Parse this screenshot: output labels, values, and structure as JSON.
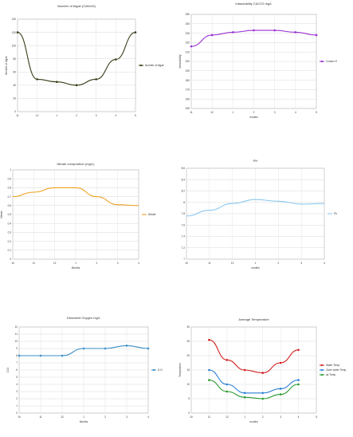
{
  "charts": [
    {
      "type": "line",
      "title": "Number of Algae (Cell/ml2)",
      "xlabel": "",
      "ylabel": "Number of Algae",
      "x_ticks": [
        "11",
        "12",
        "1",
        "2",
        "3",
        "4",
        "5"
      ],
      "x": [
        "11",
        "12",
        "1",
        "2",
        "3",
        "4",
        "5"
      ],
      "ylim": [
        0,
        140
      ],
      "y_ticks": [
        0,
        20,
        40,
        60,
        80,
        100,
        120,
        140
      ],
      "series": [
        {
          "name": "Number of Algae",
          "color": "#3b3b18",
          "values": [
            120,
            49,
            45,
            40,
            49,
            79,
            120
          ]
        }
      ],
      "legend": "right",
      "grid": true,
      "markers": true
    },
    {
      "type": "line",
      "title": "Intractability CACO3 mg/L",
      "xlabel": "months",
      "ylabel": "Intractability",
      "x_ticks": [
        "11",
        "12",
        "1",
        "2",
        "3",
        "4",
        "5"
      ],
      "x": [
        "11",
        "12",
        "1",
        "2",
        "3",
        "4",
        "5"
      ],
      "ylim": [
        150,
        250
      ],
      "y_ticks": [
        150,
        160,
        170,
        180,
        190,
        200,
        210,
        220,
        230,
        240,
        250
      ],
      "series": [
        {
          "name": "Column E",
          "color": "#9b2fd4",
          "values": [
            216,
            228,
            231,
            233,
            233,
            231,
            228
          ]
        }
      ],
      "legend": "right",
      "grid": true,
      "markers": true
    },
    {
      "type": "line",
      "title": "Nitrate composition (mg/L)",
      "xlabel": "Months",
      "ylabel": "Nitrate",
      "x_ticks": [
        "10",
        "11",
        "12",
        "1",
        "2",
        "3",
        "4"
      ],
      "x": [
        "10",
        "11",
        "12",
        "1",
        "2",
        "3",
        "4"
      ],
      "ylim": [
        0,
        1
      ],
      "y_ticks": [
        0,
        0.1,
        0.2,
        0.3,
        0.4,
        0.5,
        0.6,
        0.7,
        0.8,
        0.9,
        1
      ],
      "series": [
        {
          "name": "Nitrate",
          "color": "#f0a020",
          "values": [
            0.7,
            0.75,
            0.8,
            0.8,
            0.7,
            0.61,
            0.6
          ]
        }
      ],
      "legend": "right",
      "grid": true,
      "markers": false
    },
    {
      "type": "line",
      "title": "PH",
      "xlabel": "months",
      "ylabel": "PH",
      "x_ticks": [
        "10",
        "11",
        "12",
        "1",
        "2",
        "3",
        "4"
      ],
      "x": [
        "10",
        "11",
        "12",
        "1",
        "2",
        "3",
        "4"
      ],
      "ylim": [
        7,
        8.6
      ],
      "y_ticks": [
        7,
        7.2,
        7.4,
        7.6,
        7.8,
        8,
        8.2,
        8.4,
        8.6
      ],
      "series": [
        {
          "name": "Ph",
          "color": "#8cc7ee",
          "values": [
            7.76,
            7.86,
            7.98,
            8.05,
            8.02,
            7.97,
            7.98
          ]
        }
      ],
      "legend": "right",
      "grid": true,
      "markers": false
    },
    {
      "type": "line",
      "title": "Dissolved Oxygen mg/L",
      "xlabel": "Months",
      "ylabel": "D.O",
      "x_ticks": [
        "10",
        "11",
        "12",
        "1",
        "2",
        "3",
        "4"
      ],
      "x": [
        "10",
        "11",
        "12",
        "1",
        "2",
        "3",
        "4"
      ],
      "ylim": [
        0,
        12
      ],
      "y_ticks": [
        0,
        1,
        2,
        3,
        4,
        5,
        6,
        7,
        8,
        9,
        10,
        11,
        12
      ],
      "series": [
        {
          "name": "D.O",
          "color": "#3a8fc6",
          "values": [
            8.0,
            8.0,
            8.0,
            9.0,
            9.0,
            9.4,
            9.0
          ]
        }
      ],
      "legend": "right",
      "grid": true,
      "markers": true
    },
    {
      "type": "line",
      "title": "Average Temperature",
      "xlabel": "months",
      "ylabel": "Temperature",
      "x_ticks": [
        "10",
        "11",
        "12",
        "1",
        "2",
        "3",
        "4",
        "5"
      ],
      "x": [
        "11",
        "12",
        "1",
        "2",
        "3",
        "4"
      ],
      "ylim": [
        0,
        30
      ],
      "y_ticks": [
        0,
        5,
        10,
        15,
        20,
        25,
        30
      ],
      "series": [
        {
          "name": "Water Temp.",
          "color": "#d32020",
          "values": [
            25.5,
            18.5,
            15.0,
            14.0,
            17.5,
            22.0
          ]
        },
        {
          "name": "Outer water Temp.",
          "color": "#2a7fd4",
          "values": [
            15.0,
            10.0,
            7.0,
            7.0,
            8.5,
            11.5
          ]
        },
        {
          "name": "air Temp.",
          "color": "#2a9a30",
          "values": [
            11.5,
            7.5,
            5.5,
            5.0,
            6.5,
            10.0
          ]
        }
      ],
      "legend": "right",
      "grid": true,
      "markers": true
    }
  ]
}
